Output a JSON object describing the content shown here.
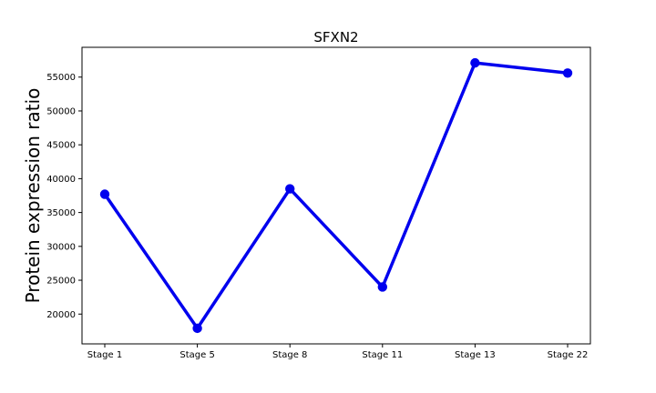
{
  "chart_data": {
    "type": "line",
    "title": "SFXN2",
    "xlabel": "",
    "ylabel": "Protein expression ratio",
    "categories": [
      "Stage 1",
      "Stage 5",
      "Stage 8",
      "Stage 11",
      "Stage 13",
      "Stage 22"
    ],
    "series": [
      {
        "values": [
          37700,
          17900,
          38500,
          24000,
          57100,
          55600
        ],
        "color": "#0000ee",
        "marker": "circle"
      }
    ],
    "ylim": [
      15600,
      59400
    ],
    "yticks": [
      20000,
      25000,
      30000,
      35000,
      40000,
      45000,
      50000,
      55000
    ],
    "grid": false,
    "legend": "none"
  }
}
